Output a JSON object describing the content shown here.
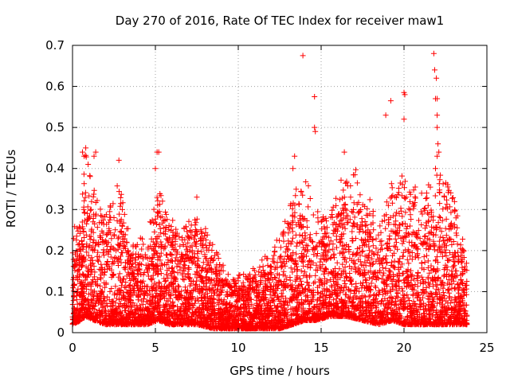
{
  "chart_data": {
    "type": "scatter",
    "title": "Day 270 of 2016, Rate Of TEC Index for receiver maw1",
    "xlabel": "GPS time / hours",
    "ylabel": "ROTI / TECUs",
    "xlim": [
      0,
      25
    ],
    "ylim": [
      0,
      0.7
    ],
    "x_ticks": [
      0,
      5,
      10,
      15,
      20,
      25
    ],
    "x_tick_labels": [
      "0",
      "5",
      "10",
      "15",
      "20",
      "25"
    ],
    "y_ticks": [
      0,
      0.1,
      0.2,
      0.3,
      0.4,
      0.5,
      0.6,
      0.7
    ],
    "y_tick_labels": [
      "0",
      "0.1",
      "0.2",
      "0.3",
      "0.4",
      "0.5",
      "0.6",
      "0.7"
    ],
    "grid": true,
    "marker": "plus",
    "color": "#ff0000",
    "time_range_hours": [
      0,
      23.8
    ],
    "envelope": [
      {
        "x": 0.0,
        "base": 0.02,
        "peak": 0.26
      },
      {
        "x": 0.5,
        "base": 0.03,
        "peak": 0.3
      },
      {
        "x": 0.8,
        "base": 0.04,
        "peak": 0.44
      },
      {
        "x": 1.3,
        "base": 0.03,
        "peak": 0.35
      },
      {
        "x": 2.0,
        "base": 0.02,
        "peak": 0.3
      },
      {
        "x": 2.8,
        "base": 0.02,
        "peak": 0.38
      },
      {
        "x": 3.5,
        "base": 0.02,
        "peak": 0.22
      },
      {
        "x": 4.5,
        "base": 0.02,
        "peak": 0.24
      },
      {
        "x": 5.2,
        "base": 0.03,
        "peak": 0.36
      },
      {
        "x": 5.8,
        "base": 0.02,
        "peak": 0.3
      },
      {
        "x": 6.5,
        "base": 0.02,
        "peak": 0.26
      },
      {
        "x": 7.5,
        "base": 0.02,
        "peak": 0.3
      },
      {
        "x": 8.5,
        "base": 0.01,
        "peak": 0.22
      },
      {
        "x": 9.5,
        "base": 0.01,
        "peak": 0.14
      },
      {
        "x": 10.5,
        "base": 0.01,
        "peak": 0.15
      },
      {
        "x": 11.5,
        "base": 0.01,
        "peak": 0.18
      },
      {
        "x": 12.5,
        "base": 0.01,
        "peak": 0.24
      },
      {
        "x": 13.3,
        "base": 0.02,
        "peak": 0.34
      },
      {
        "x": 14.0,
        "base": 0.03,
        "peak": 0.4
      },
      {
        "x": 14.7,
        "base": 0.03,
        "peak": 0.3
      },
      {
        "x": 15.5,
        "base": 0.04,
        "peak": 0.28
      },
      {
        "x": 16.5,
        "base": 0.04,
        "peak": 0.43
      },
      {
        "x": 17.5,
        "base": 0.03,
        "peak": 0.38
      },
      {
        "x": 18.5,
        "base": 0.02,
        "peak": 0.26
      },
      {
        "x": 19.3,
        "base": 0.03,
        "peak": 0.4
      },
      {
        "x": 20.0,
        "base": 0.02,
        "peak": 0.38
      },
      {
        "x": 20.8,
        "base": 0.02,
        "peak": 0.36
      },
      {
        "x": 21.5,
        "base": 0.02,
        "peak": 0.37
      },
      {
        "x": 22.2,
        "base": 0.02,
        "peak": 0.4
      },
      {
        "x": 23.0,
        "base": 0.02,
        "peak": 0.33
      },
      {
        "x": 23.8,
        "base": 0.02,
        "peak": 0.18
      }
    ],
    "outliers": [
      {
        "x": 0.6,
        "y": 0.44
      },
      {
        "x": 0.7,
        "y": 0.43
      },
      {
        "x": 0.8,
        "y": 0.45
      },
      {
        "x": 1.3,
        "y": 0.43
      },
      {
        "x": 1.4,
        "y": 0.44
      },
      {
        "x": 2.8,
        "y": 0.42
      },
      {
        "x": 5.1,
        "y": 0.44
      },
      {
        "x": 5.2,
        "y": 0.44
      },
      {
        "x": 5.0,
        "y": 0.4
      },
      {
        "x": 7.5,
        "y": 0.33
      },
      {
        "x": 13.3,
        "y": 0.4
      },
      {
        "x": 13.4,
        "y": 0.43
      },
      {
        "x": 13.9,
        "y": 0.675
      },
      {
        "x": 14.6,
        "y": 0.575
      },
      {
        "x": 14.6,
        "y": 0.5
      },
      {
        "x": 14.65,
        "y": 0.49
      },
      {
        "x": 16.4,
        "y": 0.44
      },
      {
        "x": 18.9,
        "y": 0.53
      },
      {
        "x": 19.2,
        "y": 0.565
      },
      {
        "x": 20.0,
        "y": 0.585
      },
      {
        "x": 20.05,
        "y": 0.58
      },
      {
        "x": 20.0,
        "y": 0.52
      },
      {
        "x": 21.8,
        "y": 0.68
      },
      {
        "x": 21.85,
        "y": 0.64
      },
      {
        "x": 21.95,
        "y": 0.62
      },
      {
        "x": 21.9,
        "y": 0.57
      },
      {
        "x": 22.0,
        "y": 0.57
      },
      {
        "x": 22.0,
        "y": 0.53
      },
      {
        "x": 22.0,
        "y": 0.5
      },
      {
        "x": 22.05,
        "y": 0.46
      },
      {
        "x": 22.1,
        "y": 0.44
      },
      {
        "x": 22.0,
        "y": 0.43
      },
      {
        "x": 21.9,
        "y": 0.4
      }
    ]
  }
}
